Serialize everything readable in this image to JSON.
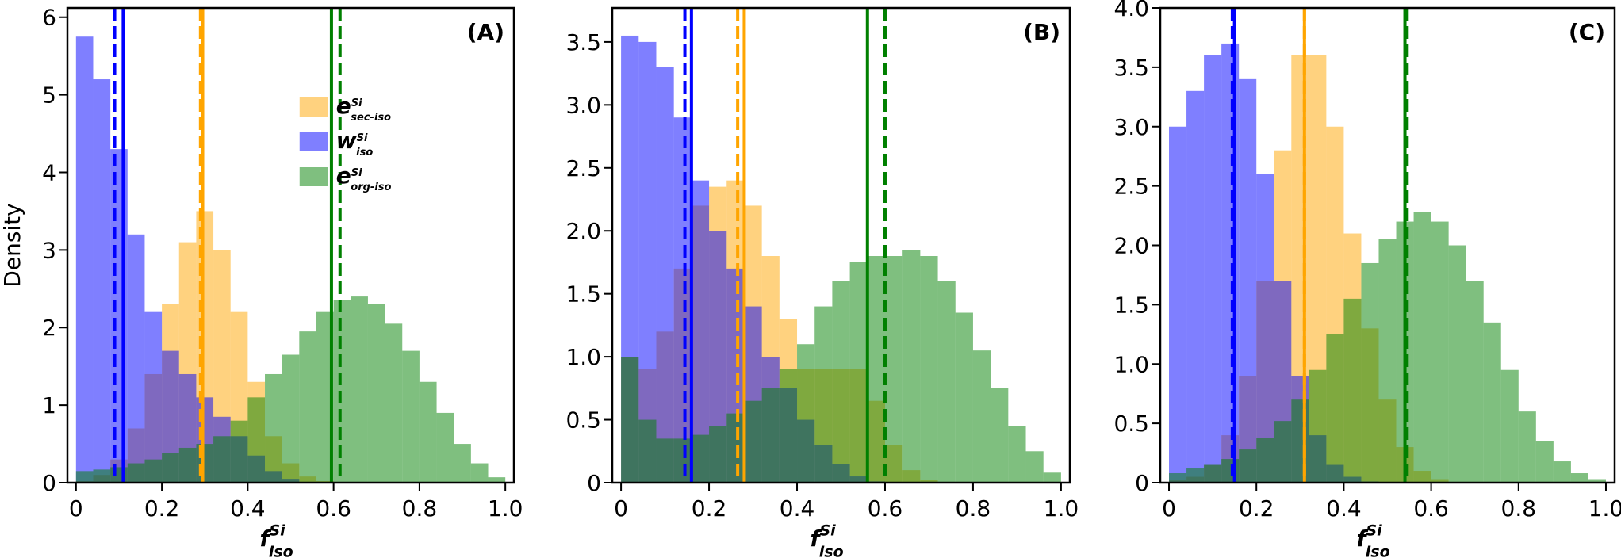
{
  "chart_data": [
    {
      "type": "histogram",
      "panel_label": "(A)",
      "ylabel": "Density",
      "xlabel": "f",
      "xlabel_sup": "Si",
      "xlabel_sub": "iso",
      "legend": "upper center",
      "bins": [
        0,
        0.04,
        0.08,
        0.12,
        0.16,
        0.2,
        0.24,
        0.28,
        0.32,
        0.36,
        0.4,
        0.44,
        0.48,
        0.52,
        0.56,
        0.6,
        0.64,
        0.68,
        0.72,
        0.76,
        0.8,
        0.84,
        0.88,
        0.92,
        0.96,
        1.0
      ],
      "series": [
        {
          "name": "e",
          "name_sup": "Si",
          "name_sub": "sec-iso",
          "color": "#ffa500",
          "values": [
            0.02,
            0.1,
            0.3,
            0.7,
            1.4,
            2.3,
            3.1,
            3.5,
            3.0,
            2.2,
            1.3,
            0.6,
            0.25,
            0.08,
            0.02,
            0,
            0,
            0,
            0,
            0,
            0,
            0,
            0,
            0,
            0
          ]
        },
        {
          "name": "w",
          "name_sup": "Si",
          "name_sub": "iso",
          "color": "#0000ff",
          "values": [
            5.75,
            5.2,
            4.3,
            3.2,
            2.2,
            1.7,
            1.4,
            1.1,
            0.85,
            0.6,
            0.35,
            0.15,
            0.05,
            0,
            0,
            0,
            0,
            0,
            0,
            0,
            0,
            0,
            0,
            0,
            0
          ]
        },
        {
          "name": "e",
          "name_sup": "Si",
          "name_sub": "org-iso",
          "color": "#008000",
          "values": [
            0.15,
            0.17,
            0.2,
            0.25,
            0.3,
            0.38,
            0.45,
            0.5,
            0.6,
            0.8,
            1.1,
            1.4,
            1.65,
            1.95,
            2.2,
            2.35,
            2.4,
            2.3,
            2.05,
            1.7,
            1.3,
            0.9,
            0.5,
            0.25,
            0.07
          ]
        }
      ],
      "vlines": [
        {
          "x": 0.09,
          "color": "#0000ff",
          "dashed": true
        },
        {
          "x": 0.11,
          "color": "#0000ff",
          "dashed": false
        },
        {
          "x": 0.29,
          "color": "#ffa500",
          "dashed": true
        },
        {
          "x": 0.295,
          "color": "#ffa500",
          "dashed": false
        },
        {
          "x": 0.595,
          "color": "#008000",
          "dashed": false
        },
        {
          "x": 0.615,
          "color": "#008000",
          "dashed": true
        }
      ],
      "xlim": [
        -0.02,
        1.02
      ],
      "xticks": [
        0,
        0.2,
        0.4,
        0.6,
        0.8,
        {
          "value": 1.0,
          "label": "1.0"
        }
      ],
      "ylim": [
        0,
        6.12
      ],
      "yticks": [
        0,
        1,
        2,
        3,
        4,
        5,
        6
      ]
    },
    {
      "type": "histogram",
      "panel_label": "(B)",
      "xlabel": "f",
      "xlabel_sup": "Si",
      "xlabel_sub": "iso",
      "bins": [
        0,
        0.04,
        0.08,
        0.12,
        0.16,
        0.2,
        0.24,
        0.28,
        0.32,
        0.36,
        0.4,
        0.44,
        0.48,
        0.52,
        0.56,
        0.6,
        0.64,
        0.68,
        0.72,
        0.76,
        0.8,
        0.84,
        0.88,
        0.92,
        0.96,
        1.0
      ],
      "series": [
        {
          "color": "#ffa500",
          "values": [
            1.0,
            0.9,
            1.2,
            1.7,
            2.2,
            2.35,
            2.4,
            2.2,
            1.8,
            1.3,
            0.9,
            0.9,
            0.9,
            0.9,
            0.65,
            0.3,
            0.1,
            0.02,
            0,
            0,
            0,
            0,
            0,
            0,
            0
          ]
        },
        {
          "color": "#0000ff",
          "values": [
            3.55,
            3.5,
            3.3,
            2.9,
            2.4,
            2.0,
            1.7,
            1.4,
            1.0,
            0.75,
            0.5,
            0.3,
            0.15,
            0.05,
            0.01,
            0,
            0,
            0,
            0,
            0,
            0,
            0,
            0,
            0,
            0
          ]
        },
        {
          "color": "#008000",
          "values": [
            1.0,
            0.5,
            0.35,
            0.35,
            0.38,
            0.45,
            0.55,
            0.65,
            0.75,
            0.9,
            1.1,
            1.4,
            1.6,
            1.75,
            1.8,
            1.8,
            1.85,
            1.8,
            1.6,
            1.35,
            1.05,
            0.75,
            0.45,
            0.25,
            0.08
          ]
        }
      ],
      "vlines": [
        {
          "x": 0.145,
          "color": "#0000ff",
          "dashed": true
        },
        {
          "x": 0.16,
          "color": "#0000ff",
          "dashed": false
        },
        {
          "x": 0.265,
          "color": "#ffa500",
          "dashed": true
        },
        {
          "x": 0.28,
          "color": "#ffa500",
          "dashed": false
        },
        {
          "x": 0.56,
          "color": "#008000",
          "dashed": false
        },
        {
          "x": 0.6,
          "color": "#008000",
          "dashed": true
        }
      ],
      "xlim": [
        -0.02,
        1.02
      ],
      "xticks": [
        0,
        0.2,
        0.4,
        0.6,
        0.8,
        {
          "value": 1.0,
          "label": "1.0"
        }
      ],
      "ylim": [
        0,
        3.77
      ],
      "yticks": [
        0,
        0.5,
        {
          "value": 1.0,
          "label": "1.0"
        },
        1.5,
        {
          "value": 2.0,
          "label": "2.0"
        },
        2.5,
        {
          "value": 3.0,
          "label": "3.0"
        },
        3.5
      ]
    },
    {
      "type": "histogram",
      "panel_label": "(C)",
      "xlabel": "f",
      "xlabel_sup": "Si",
      "xlabel_sub": "iso",
      "bins": [
        0,
        0.04,
        0.08,
        0.12,
        0.16,
        0.2,
        0.24,
        0.28,
        0.32,
        0.36,
        0.4,
        0.44,
        0.48,
        0.52,
        0.56,
        0.6,
        0.64,
        0.68,
        0.72,
        0.76,
        0.8,
        0.84,
        0.88,
        0.92,
        0.96,
        1.0
      ],
      "series": [
        {
          "color": "#ffa500",
          "values": [
            0.02,
            0.05,
            0.15,
            0.4,
            0.9,
            1.7,
            2.8,
            3.6,
            3.6,
            3.0,
            2.1,
            1.3,
            0.7,
            0.3,
            0.1,
            0.03,
            0,
            0,
            0,
            0,
            0,
            0,
            0,
            0,
            0
          ]
        },
        {
          "color": "#0000ff",
          "values": [
            3.0,
            3.3,
            3.6,
            3.7,
            3.4,
            2.6,
            1.7,
            0.9,
            0.4,
            0.15,
            0.05,
            0.01,
            0,
            0,
            0,
            0,
            0,
            0,
            0,
            0,
            0,
            0,
            0,
            0,
            0
          ]
        },
        {
          "color": "#008000",
          "values": [
            0.08,
            0.12,
            0.15,
            0.2,
            0.28,
            0.38,
            0.52,
            0.7,
            0.95,
            1.25,
            1.55,
            1.85,
            2.05,
            2.2,
            2.28,
            2.2,
            2.0,
            1.7,
            1.35,
            0.95,
            0.6,
            0.35,
            0.18,
            0.08,
            0.03
          ]
        }
      ],
      "vlines": [
        {
          "x": 0.145,
          "color": "#0000ff",
          "dashed": true
        },
        {
          "x": 0.15,
          "color": "#0000ff",
          "dashed": false
        },
        {
          "x": 0.31,
          "color": "#ffa500",
          "dashed": true
        },
        {
          "x": 0.31,
          "color": "#ffa500",
          "dashed": false
        },
        {
          "x": 0.54,
          "color": "#008000",
          "dashed": false
        },
        {
          "x": 0.545,
          "color": "#008000",
          "dashed": true
        }
      ],
      "xlim": [
        -0.02,
        1.02
      ],
      "xticks": [
        0,
        0.2,
        0.4,
        0.6,
        0.8,
        {
          "value": 1.0,
          "label": "1.0"
        }
      ],
      "ylim": [
        0,
        4.0
      ],
      "yticks": [
        0,
        0.5,
        {
          "value": 1.0,
          "label": "1.0"
        },
        1.5,
        {
          "value": 2.0,
          "label": "2.0"
        },
        2.5,
        {
          "value": 3.0,
          "label": "3.0"
        },
        3.5,
        {
          "value": 4.0,
          "label": "4.0"
        }
      ]
    }
  ]
}
